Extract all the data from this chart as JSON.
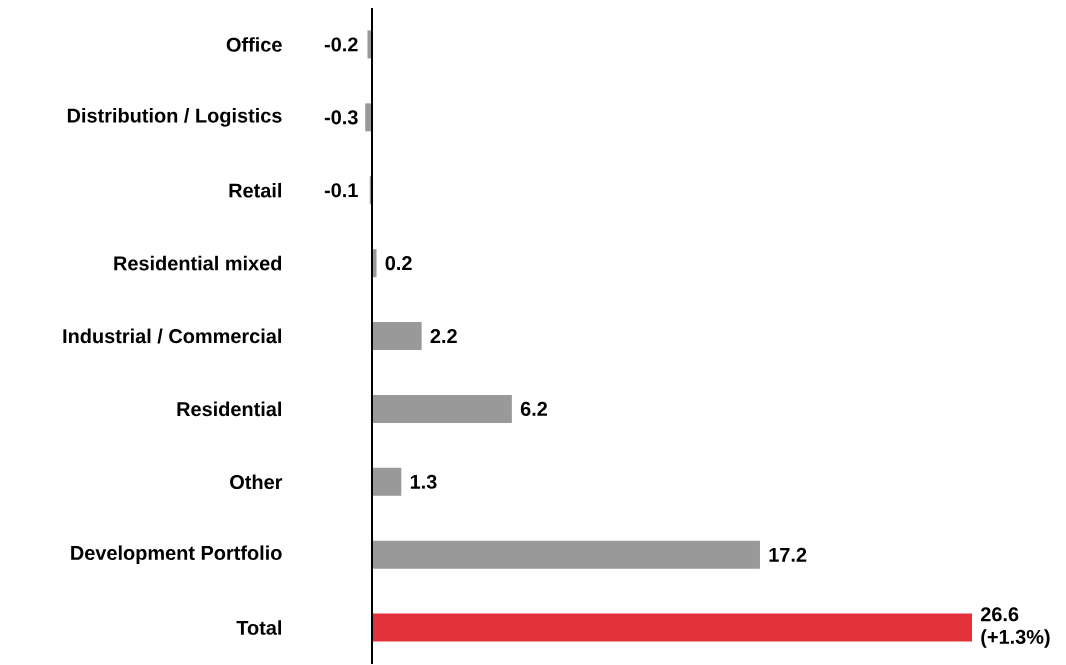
{
  "chart_data": {
    "type": "bar",
    "orientation": "horizontal",
    "tick_labels": "y",
    "categories": [
      "Office",
      "Distribution / Logistics",
      "Retail",
      "Residential mixed",
      "Industrial / Commercial",
      "Residential",
      "Other",
      "Development Portfolio",
      "Total"
    ],
    "values": [
      -0.2,
      -0.3,
      -0.1,
      0.2,
      2.2,
      6.2,
      1.3,
      17.2,
      26.6
    ],
    "colors": [
      "#999999",
      "#999999",
      "#999999",
      "#999999",
      "#999999",
      "#999999",
      "#999999",
      "#999999",
      "#e3323a"
    ],
    "value_labels": [
      "-0.2",
      "-0.3",
      "-0.1",
      "0.2",
      "2.2",
      "6.2",
      "1.3",
      "17.2",
      "26.6 (+1.3%)"
    ]
  }
}
